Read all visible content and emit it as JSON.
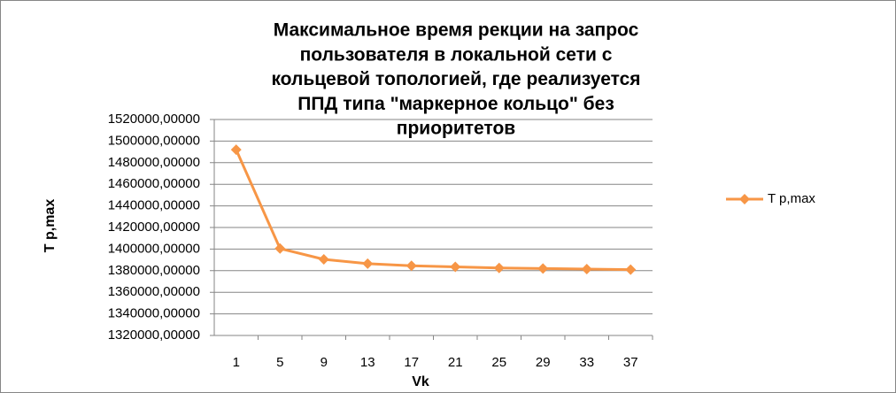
{
  "chart_data": {
    "type": "line",
    "title": [
      "Максимальное время рекции на запрос",
      "пользователя в локальной сети с",
      "кольцевой топологией, где реализуется",
      "ППД типа \"маркерное кольцо\" без",
      "приоритетов"
    ],
    "x_label": "Vk",
    "y_label": "T p,max",
    "categories": [
      "1",
      "5",
      "9",
      "13",
      "17",
      "21",
      "25",
      "29",
      "33",
      "37"
    ],
    "series": [
      {
        "name": "T p,max",
        "color": "#f79646",
        "values": [
          1492000,
          1400500,
          1390500,
          1386500,
          1384500,
          1383500,
          1382500,
          1382000,
          1381500,
          1381000
        ]
      }
    ],
    "ylim": [
      1320000,
      1520000
    ],
    "yticks": [
      {
        "value": 1320000,
        "label": "1320000,00000"
      },
      {
        "value": 1340000,
        "label": "1340000,00000"
      },
      {
        "value": 1360000,
        "label": "1360000,00000"
      },
      {
        "value": 1380000,
        "label": "1380000,00000"
      },
      {
        "value": 1400000,
        "label": "1400000,00000"
      },
      {
        "value": 1420000,
        "label": "1420000,00000"
      },
      {
        "value": 1440000,
        "label": "1440000,00000"
      },
      {
        "value": 1460000,
        "label": "1460000,00000"
      },
      {
        "value": 1480000,
        "label": "1480000,00000"
      },
      {
        "value": 1500000,
        "label": "1500000,00000"
      },
      {
        "value": 1520000,
        "label": "1520000,00000"
      }
    ],
    "grid": true,
    "legend": "right"
  }
}
